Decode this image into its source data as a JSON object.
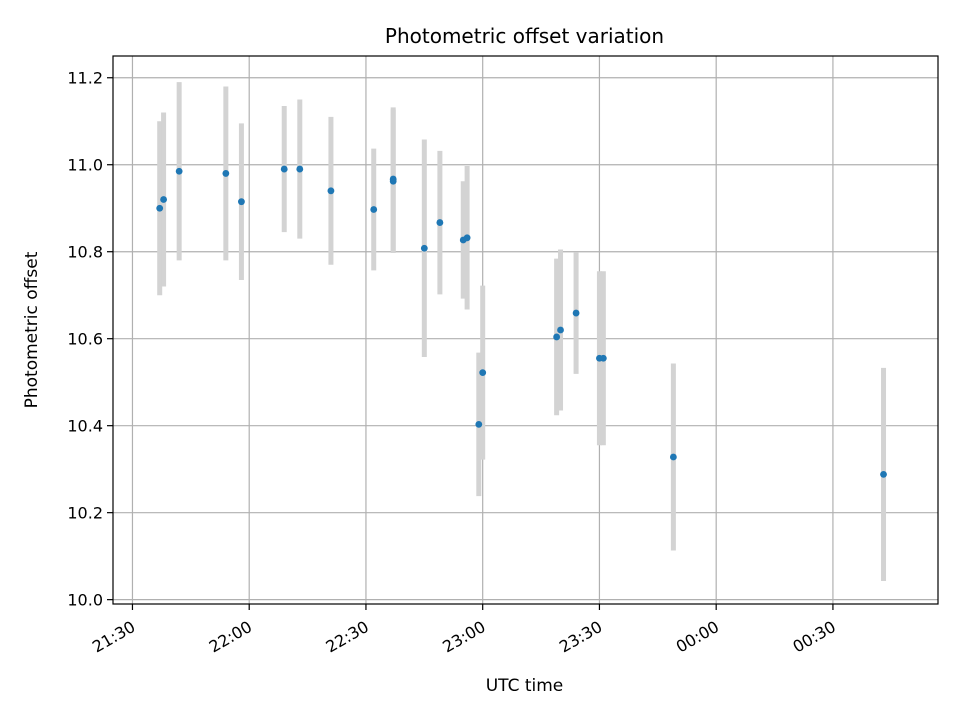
{
  "chart_data": {
    "type": "scatter",
    "title": "Photometric offset variation",
    "xlabel": "UTC time",
    "ylabel": "Photometric offset",
    "x_axis": "time",
    "xlim": [
      "21:25",
      "00:57"
    ],
    "ylim": [
      9.99,
      11.25
    ],
    "x_ticks": [
      "21:30",
      "22:00",
      "22:30",
      "23:00",
      "23:30",
      "00:00",
      "00:30"
    ],
    "y_ticks": [
      "10.0",
      "10.2",
      "10.4",
      "10.6",
      "10.8",
      "11.0",
      "11.2"
    ],
    "grid": true,
    "legend": "none",
    "colors": {
      "points": "#1f77b4",
      "error_bars": "#d3d3d3",
      "grid": "#b0b0b0"
    },
    "series": [
      {
        "points": [
          {
            "t": "21:37",
            "y": 10.9,
            "err": 0.2
          },
          {
            "t": "21:38",
            "y": 10.92,
            "err": 0.2
          },
          {
            "t": "21:42",
            "y": 10.985,
            "err": 0.205
          },
          {
            "t": "21:54",
            "y": 10.98,
            "err": 0.2
          },
          {
            "t": "21:58",
            "y": 10.915,
            "err": 0.18
          },
          {
            "t": "22:09",
            "y": 10.99,
            "err": 0.145
          },
          {
            "t": "22:13",
            "y": 10.99,
            "err": 0.16
          },
          {
            "t": "22:21",
            "y": 10.94,
            "err": 0.17
          },
          {
            "t": "22:32",
            "y": 10.897,
            "err": 0.14
          },
          {
            "t": "22:37",
            "y": 10.967,
            "err": 0.165
          },
          {
            "t": "22:37",
            "y": 10.962,
            "err": 0.165
          },
          {
            "t": "22:45",
            "y": 10.808,
            "err": 0.25
          },
          {
            "t": "22:49",
            "y": 10.867,
            "err": 0.165
          },
          {
            "t": "22:55",
            "y": 10.827,
            "err": 0.135
          },
          {
            "t": "22:56",
            "y": 10.832,
            "err": 0.165
          },
          {
            "t": "22:59",
            "y": 10.403,
            "err": 0.165
          },
          {
            "t": "23:00",
            "y": 10.522,
            "err": 0.2
          },
          {
            "t": "23:19",
            "y": 10.604,
            "err": 0.18
          },
          {
            "t": "23:20",
            "y": 10.62,
            "err": 0.185
          },
          {
            "t": "23:24",
            "y": 10.659,
            "err": 0.14
          },
          {
            "t": "23:30",
            "y": 10.555,
            "err": 0.2
          },
          {
            "t": "23:31",
            "y": 10.555,
            "err": 0.2
          },
          {
            "t": "23:49",
            "y": 10.328,
            "err": 0.215
          },
          {
            "t": "00:43",
            "y": 10.288,
            "err": 0.245
          }
        ]
      }
    ]
  }
}
